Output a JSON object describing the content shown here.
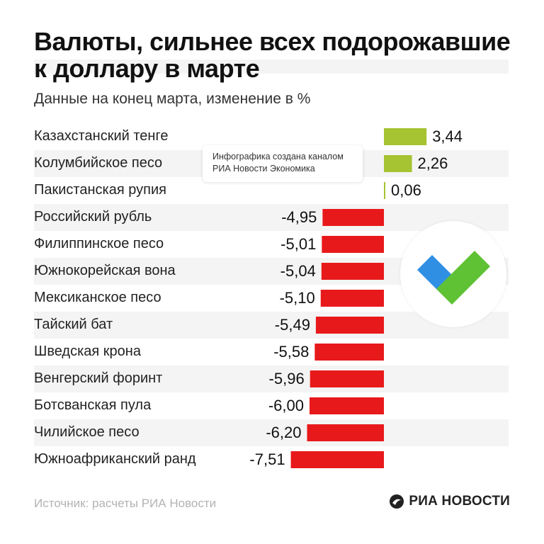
{
  "header": {
    "title_line1": "Валюты, сильнее всех подорожавшие",
    "title_line2": "к доллару в марте",
    "subtitle": "Данные на конец марта, изменение в %"
  },
  "overlay": {
    "line1": "Инфографика создана каналом",
    "line2": "РИА Новости Экономика"
  },
  "colors": {
    "positive": "#a6c332",
    "negative": "#e8191b",
    "stripe": "#f4f4f4",
    "logo_blue": "#2f8fe3",
    "logo_green": "#5fc134"
  },
  "chart_data": {
    "type": "bar",
    "orientation": "horizontal",
    "categories": [
      "Казахстанский тенге",
      "Колумбийское песо",
      "Пакистанская рупия",
      "Российский рубль",
      "Филиппинское песо",
      "Южнокорейская вона",
      "Мексиканское песо",
      "Тайский бат",
      "Шведская крона",
      "Венгерский форинт",
      "Ботсванская пула",
      "Чилийское песо",
      "Южноафриканский ранд"
    ],
    "values": [
      3.44,
      2.26,
      0.06,
      -4.95,
      -5.01,
      -5.04,
      -5.1,
      -5.49,
      -5.58,
      -5.96,
      -6.0,
      -6.2,
      -7.51
    ],
    "value_labels": [
      "3,44",
      "2,26",
      "0,06",
      "-4,95",
      "-5,01",
      "-5,04",
      "-5,10",
      "-5,49",
      "-5,58",
      "-5,96",
      "-6,00",
      "-6,20",
      "-7,51"
    ],
    "title": "Валюты, сильнее всех подорожавшие к доллару в марте",
    "subtitle": "Данные на конец марта, изменение в %",
    "xlabel": "",
    "ylabel": "",
    "grid": false
  },
  "footer": {
    "source": "Источник: расчеты РИА Новости",
    "brand": "РИА НОВОСТИ"
  }
}
